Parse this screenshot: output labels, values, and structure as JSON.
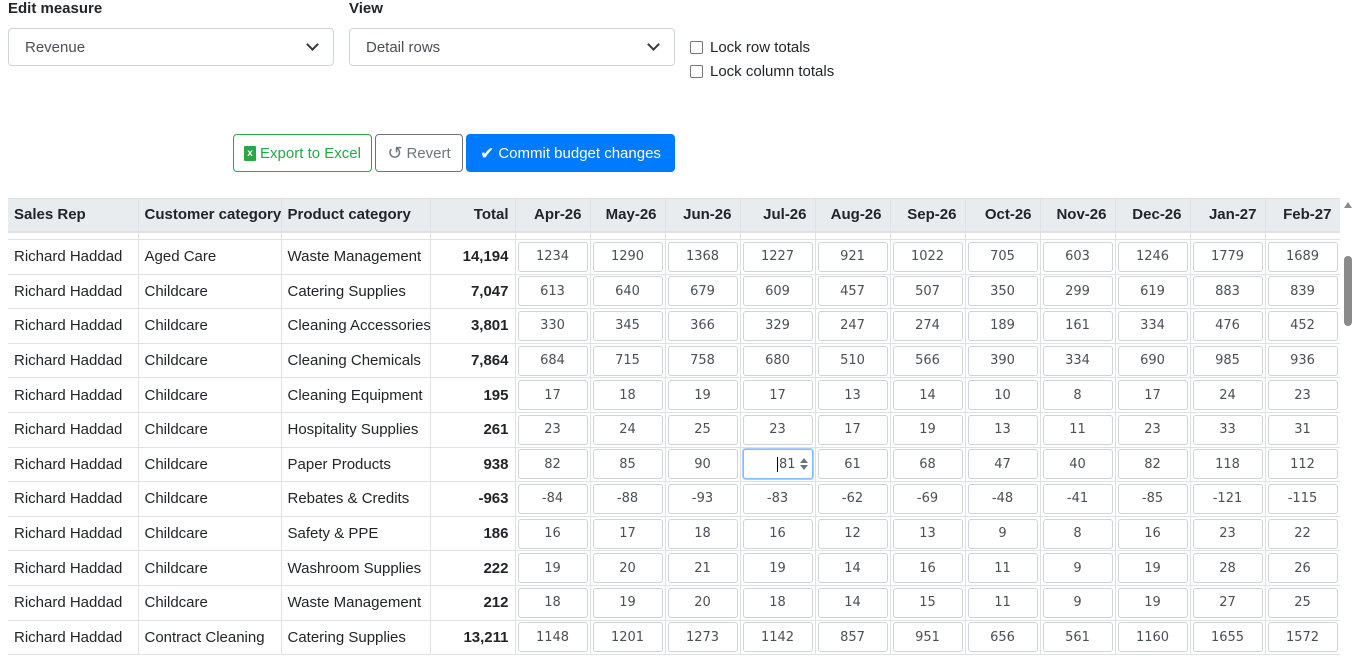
{
  "controls": {
    "edit_measure_label": "Edit measure",
    "edit_measure_value": "Revenue",
    "view_label": "View",
    "view_value": "Detail rows",
    "lock_row_totals": "Lock row totals",
    "lock_column_totals": "Lock column totals"
  },
  "toolbar": {
    "excel_icon": "x",
    "export_label": "Export to Excel",
    "revert_label": "Revert",
    "commit_label": "Commit budget changes"
  },
  "icons": {
    "excel": "excel-icon",
    "revert": "undo-icon",
    "commit": "check-icon"
  },
  "colors": {
    "success": "#28a745",
    "primary": "#007bff",
    "secondary": "#6c757d",
    "header_bg": "#e9ecef"
  },
  "table": {
    "headers": [
      "Sales Rep",
      "Customer category",
      "Product category",
      "Total",
      "Apr-26",
      "May-26",
      "Jun-26",
      "Jul-26",
      "Aug-26",
      "Sep-26",
      "Oct-26",
      "Nov-26",
      "Dec-26",
      "Jan-27",
      "Feb-27"
    ],
    "rows": [
      {
        "rep": "Richard Haddad",
        "cust": "Aged Care",
        "prod": "Waste Management",
        "total": "14,194",
        "months": [
          "1234",
          "1290",
          "1368",
          "1227",
          "921",
          "1022",
          "705",
          "603",
          "1246",
          "1779",
          "1689"
        ]
      },
      {
        "rep": "Richard Haddad",
        "cust": "Childcare",
        "prod": "Catering Supplies",
        "total": "7,047",
        "months": [
          "613",
          "640",
          "679",
          "609",
          "457",
          "507",
          "350",
          "299",
          "619",
          "883",
          "839"
        ]
      },
      {
        "rep": "Richard Haddad",
        "cust": "Childcare",
        "prod": "Cleaning Accessories",
        "total": "3,801",
        "months": [
          "330",
          "345",
          "366",
          "329",
          "247",
          "274",
          "189",
          "161",
          "334",
          "476",
          "452"
        ]
      },
      {
        "rep": "Richard Haddad",
        "cust": "Childcare",
        "prod": "Cleaning Chemicals",
        "total": "7,864",
        "months": [
          "684",
          "715",
          "758",
          "680",
          "510",
          "566",
          "390",
          "334",
          "690",
          "985",
          "936"
        ]
      },
      {
        "rep": "Richard Haddad",
        "cust": "Childcare",
        "prod": "Cleaning Equipment",
        "total": "195",
        "months": [
          "17",
          "18",
          "19",
          "17",
          "13",
          "14",
          "10",
          "8",
          "17",
          "24",
          "23"
        ]
      },
      {
        "rep": "Richard Haddad",
        "cust": "Childcare",
        "prod": "Hospitality Supplies",
        "total": "261",
        "months": [
          "23",
          "24",
          "25",
          "23",
          "17",
          "19",
          "13",
          "11",
          "23",
          "33",
          "31"
        ]
      },
      {
        "rep": "Richard Haddad",
        "cust": "Childcare",
        "prod": "Paper Products",
        "total": "938",
        "months": [
          "82",
          "85",
          "90",
          "81",
          "61",
          "68",
          "47",
          "40",
          "82",
          "118",
          "112"
        ]
      },
      {
        "rep": "Richard Haddad",
        "cust": "Childcare",
        "prod": "Rebates & Credits",
        "total": "-963",
        "months": [
          "-84",
          "-88",
          "-93",
          "-83",
          "-62",
          "-69",
          "-48",
          "-41",
          "-85",
          "-121",
          "-115"
        ]
      },
      {
        "rep": "Richard Haddad",
        "cust": "Childcare",
        "prod": "Safety & PPE",
        "total": "186",
        "months": [
          "16",
          "17",
          "18",
          "16",
          "12",
          "13",
          "9",
          "8",
          "16",
          "23",
          "22"
        ]
      },
      {
        "rep": "Richard Haddad",
        "cust": "Childcare",
        "prod": "Washroom Supplies",
        "total": "222",
        "months": [
          "19",
          "20",
          "21",
          "19",
          "14",
          "16",
          "11",
          "9",
          "19",
          "28",
          "26"
        ]
      },
      {
        "rep": "Richard Haddad",
        "cust": "Childcare",
        "prod": "Waste Management",
        "total": "212",
        "months": [
          "18",
          "19",
          "20",
          "18",
          "14",
          "15",
          "11",
          "9",
          "19",
          "27",
          "25"
        ]
      },
      {
        "rep": "Richard Haddad",
        "cust": "Contract Cleaning",
        "prod": "Catering Supplies",
        "total": "13,211",
        "months": [
          "1148",
          "1201",
          "1273",
          "1142",
          "857",
          "951",
          "656",
          "561",
          "1160",
          "1655",
          "1572"
        ]
      }
    ]
  }
}
